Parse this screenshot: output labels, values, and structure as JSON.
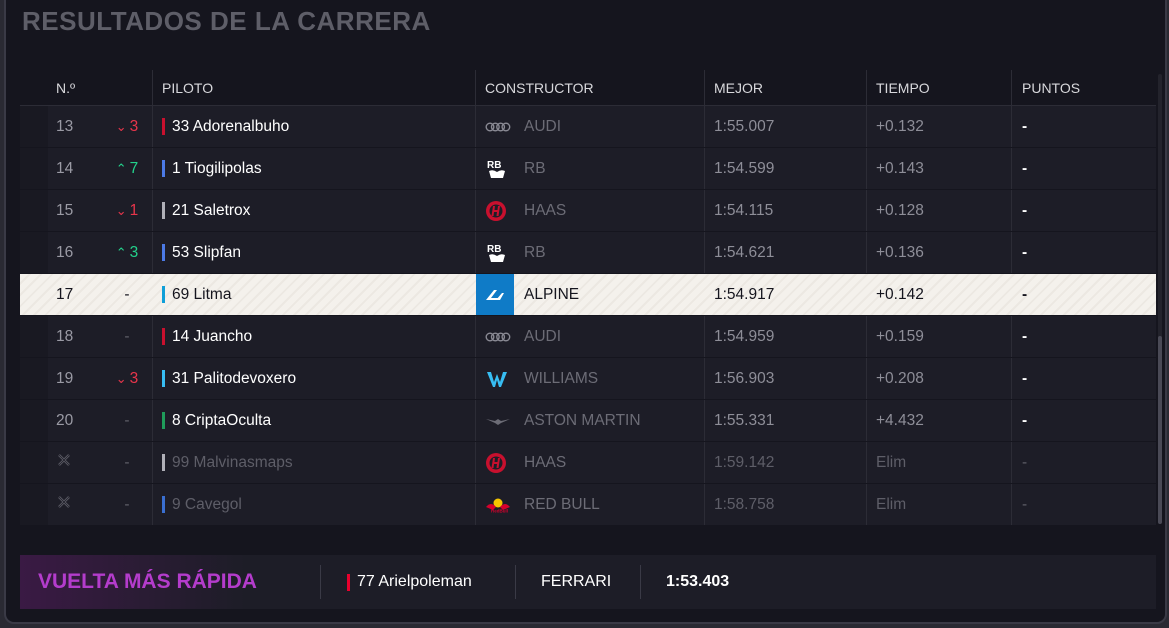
{
  "title": "RESULTADOS DE LA CARRERA",
  "headers": {
    "pos": "N.º",
    "driver": "PILOTO",
    "constructor": "CONSTRUCTOR",
    "best": "MEJOR",
    "time": "TIEMPO",
    "points": "PUNTOS"
  },
  "colors": {
    "audi": "#c8102e",
    "rb": "#4c7ae6",
    "haas": "#b0b0b8",
    "alpine": "#0f9fd8",
    "williams": "#37bdf2",
    "aston": "#1f9c5a",
    "redbull": "#3a6fd1",
    "ferrari": "#e8002d",
    "up": "#23d18b",
    "down": "#e8354b",
    "fastest": "#b43ccc"
  },
  "rows": [
    {
      "pos": "13",
      "chg_dir": "down",
      "chg": "3",
      "driver": "33 Adorenalbuho",
      "team_color": "#c8102e",
      "logo": "audi-logo-icon",
      "constructor": "AUDI",
      "best": "1:55.007",
      "time": "+0.132",
      "points": "-"
    },
    {
      "pos": "14",
      "chg_dir": "up",
      "chg": "7",
      "driver": "1 Tiogilipolas",
      "team_color": "#4c7ae6",
      "logo": "rb-logo-icon",
      "constructor": "RB",
      "best": "1:54.599",
      "time": "+0.143",
      "points": "-"
    },
    {
      "pos": "15",
      "chg_dir": "down",
      "chg": "1",
      "driver": "21 Saletrox",
      "team_color": "#b0b0b8",
      "logo": "haas-logo-icon",
      "constructor": "HAAS",
      "best": "1:54.115",
      "time": "+0.128",
      "points": "-"
    },
    {
      "pos": "16",
      "chg_dir": "up",
      "chg": "3",
      "driver": "53 Slipfan",
      "team_color": "#4c7ae6",
      "logo": "rb-logo-icon",
      "constructor": "RB",
      "best": "1:54.621",
      "time": "+0.136",
      "points": "-"
    },
    {
      "pos": "17",
      "chg_dir": "none",
      "chg": "-",
      "driver": "69 Litma",
      "team_color": "#0f9fd8",
      "logo": "alpine-logo-icon",
      "constructor": "ALPINE",
      "best": "1:54.917",
      "time": "+0.142",
      "points": "-"
    },
    {
      "pos": "18",
      "chg_dir": "none",
      "chg": "-",
      "driver": "14 Juancho",
      "team_color": "#c8102e",
      "logo": "audi-logo-icon",
      "constructor": "AUDI",
      "best": "1:54.959",
      "time": "+0.159",
      "points": "-"
    },
    {
      "pos": "19",
      "chg_dir": "down",
      "chg": "3",
      "driver": "31 Palitodevoxero",
      "team_color": "#37bdf2",
      "logo": "williams-logo-icon",
      "constructor": "WILLIAMS",
      "best": "1:56.903",
      "time": "+0.208",
      "points": "-"
    },
    {
      "pos": "20",
      "chg_dir": "none",
      "chg": "-",
      "driver": "8 CriptaOculta",
      "team_color": "#1f9c5a",
      "logo": "aston-martin-logo-icon",
      "constructor": "ASTON MARTIN",
      "best": "1:55.331",
      "time": "+4.432",
      "points": "-"
    },
    {
      "pos": "",
      "chg_dir": "none",
      "chg": "-",
      "driver": "99 Malvinasmaps",
      "team_color": "#b0b0b8",
      "logo": "haas-logo-icon",
      "constructor": "HAAS",
      "best": "1:59.142",
      "time": "Elim",
      "points": "-"
    },
    {
      "pos": "",
      "chg_dir": "none",
      "chg": "-",
      "driver": "9 Cavegol",
      "team_color": "#3a6fd1",
      "logo": "red-bull-logo-icon",
      "constructor": "RED BULL",
      "best": "1:58.758",
      "time": "Elim",
      "points": "-"
    }
  ],
  "fastest_lap": {
    "label": "VUELTA MÁS RÁPIDA",
    "driver": "77 Arielpoleman",
    "team_color": "#e8002d",
    "constructor": "FERRARI",
    "time": "1:53.403"
  }
}
